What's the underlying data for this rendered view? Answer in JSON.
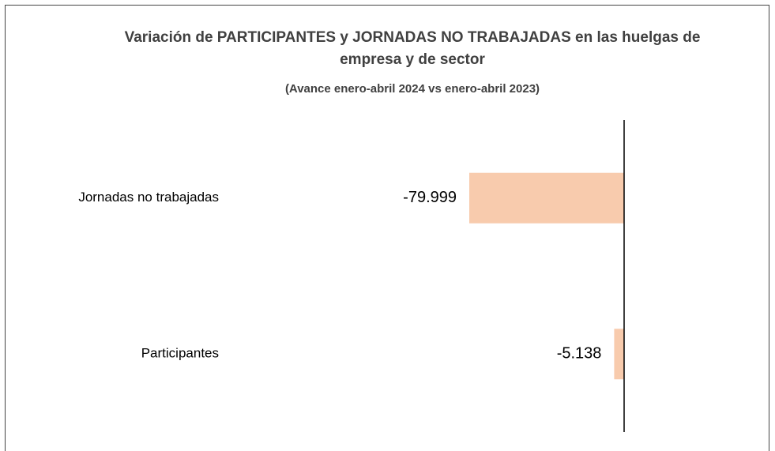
{
  "chart_data": {
    "type": "hbar",
    "title": "Variación de PARTICIPANTES  y JORNADAS NO TRABAJADAS en las huelgas de empresa y de sector",
    "subtitle": "(Avance enero-abril 2024 vs enero-abril 2023)",
    "categories": [
      "Jornadas no trabajadas",
      "Participantes"
    ],
    "values": [
      -79999,
      -5138
    ],
    "value_labels": [
      "-79.999",
      "-5.138"
    ],
    "color": "#f8cbad",
    "xlim": [
      -200000,
      70000
    ]
  }
}
